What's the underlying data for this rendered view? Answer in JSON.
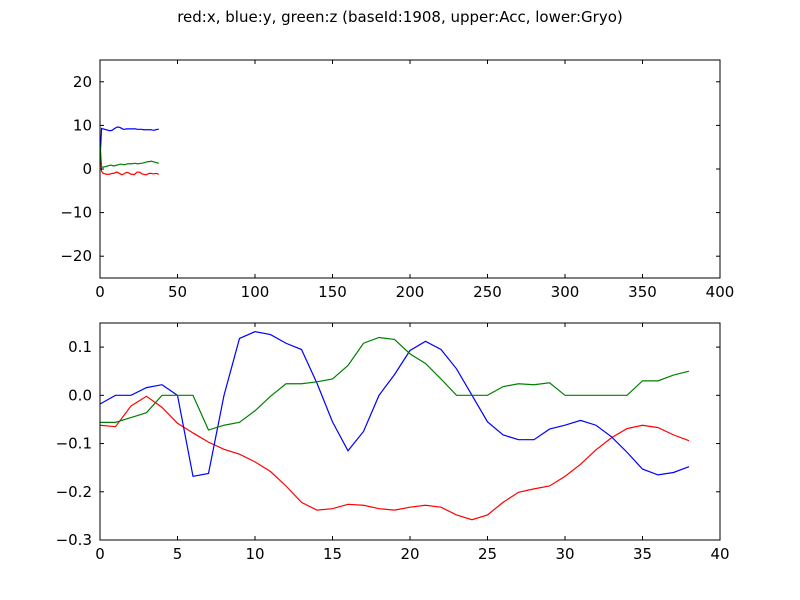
{
  "title": "red:x, blue:y, green:z (baseId:1908, upper:Acc, lower:Gryo)",
  "colors": {
    "x": "#ff0000",
    "y": "#0000ff",
    "z": "#008000"
  },
  "chart_data": [
    {
      "type": "line",
      "xlim": [
        0,
        400
      ],
      "ylim": [
        -25,
        25
      ],
      "xticks": [
        0,
        50,
        100,
        150,
        200,
        250,
        300,
        350,
        400
      ],
      "yticks": [
        20,
        10,
        0,
        -10,
        -20
      ],
      "xtick_labels": [
        "0",
        "50",
        "100",
        "150",
        "200",
        "250",
        "300",
        "350",
        "400"
      ],
      "ytick_labels": [
        "20",
        "10",
        "0",
        "−10",
        "−20"
      ],
      "x": [
        0,
        1,
        2,
        3,
        4,
        5,
        6,
        7,
        8,
        9,
        10,
        11,
        12,
        13,
        14,
        15,
        16,
        17,
        18,
        19,
        20,
        21,
        22,
        23,
        24,
        25,
        26,
        27,
        28,
        29,
        30,
        31,
        32,
        33,
        34,
        35,
        36,
        37,
        38
      ],
      "series": [
        {
          "key": "x",
          "color": "#ff0000",
          "values": [
            5.0,
            -0.5,
            -1.0,
            -1.1,
            -1.2,
            -1.2,
            -1.2,
            -1.1,
            -1.0,
            -1.0,
            -0.8,
            -0.7,
            -0.9,
            -1.1,
            -1.3,
            -1.2,
            -1.0,
            -0.8,
            -0.8,
            -1.0,
            -1.2,
            -1.2,
            -1.3,
            -1.0,
            -0.7,
            -0.7,
            -0.8,
            -1.1,
            -1.2,
            -1.3,
            -1.3,
            -1.1,
            -1.0,
            -1.0,
            -1.1,
            -1.1,
            -1.0,
            -1.1,
            -1.2
          ]
        },
        {
          "key": "y",
          "color": "#0000ff",
          "values": [
            2.0,
            9.3,
            9.2,
            9.1,
            9.0,
            8.9,
            8.8,
            8.8,
            8.9,
            9.2,
            9.4,
            9.6,
            9.6,
            9.5,
            9.3,
            9.1,
            9.1,
            9.2,
            9.2,
            9.2,
            9.2,
            9.2,
            9.2,
            9.2,
            9.1,
            9.1,
            9.1,
            9.1,
            9.0,
            9.0,
            9.0,
            9.0,
            9.0,
            9.0,
            8.9,
            8.9,
            9.0,
            9.1,
            9.1
          ]
        },
        {
          "key": "z",
          "color": "#008000",
          "values": [
            6.0,
            0.5,
            0.4,
            0.5,
            0.6,
            0.7,
            0.8,
            0.9,
            0.8,
            0.7,
            0.8,
            0.9,
            1.0,
            1.1,
            1.1,
            1.0,
            1.0,
            1.1,
            1.2,
            1.2,
            1.2,
            1.2,
            1.3,
            1.3,
            1.2,
            1.2,
            1.3,
            1.3,
            1.4,
            1.5,
            1.6,
            1.7,
            1.7,
            1.8,
            1.7,
            1.6,
            1.5,
            1.4,
            1.3
          ]
        }
      ]
    },
    {
      "type": "line",
      "xlim": [
        0,
        40
      ],
      "ylim": [
        -0.3,
        0.15
      ],
      "xticks": [
        0,
        5,
        10,
        15,
        20,
        25,
        30,
        35,
        40
      ],
      "yticks": [
        0.1,
        0.0,
        -0.1,
        -0.2,
        -0.3
      ],
      "xtick_labels": [
        "0",
        "5",
        "10",
        "15",
        "20",
        "25",
        "30",
        "35",
        "40"
      ],
      "ytick_labels": [
        "0.1",
        "0.0",
        "−0.1",
        "−0.2",
        "−0.3"
      ],
      "x": [
        0,
        1,
        2,
        3,
        4,
        5,
        6,
        7,
        8,
        9,
        10,
        11,
        12,
        13,
        14,
        15,
        16,
        17,
        18,
        19,
        20,
        21,
        22,
        23,
        24,
        25,
        26,
        27,
        28,
        29,
        30,
        31,
        32,
        33,
        34,
        35,
        36,
        37,
        38
      ],
      "series": [
        {
          "key": "x",
          "color": "#ff0000",
          "values": [
            -0.062,
            -0.065,
            -0.022,
            -0.002,
            -0.025,
            -0.058,
            -0.078,
            -0.097,
            -0.112,
            -0.122,
            -0.138,
            -0.158,
            -0.188,
            -0.222,
            -0.238,
            -0.235,
            -0.226,
            -0.228,
            -0.235,
            -0.238,
            -0.232,
            -0.228,
            -0.232,
            -0.248,
            -0.258,
            -0.248,
            -0.222,
            -0.201,
            -0.194,
            -0.188,
            -0.168,
            -0.143,
            -0.113,
            -0.088,
            -0.069,
            -0.062,
            -0.067,
            -0.082,
            -0.094
          ]
        },
        {
          "key": "y",
          "color": "#0000ff",
          "values": [
            -0.018,
            0.0,
            0.0,
            0.016,
            0.022,
            0.0,
            -0.168,
            -0.162,
            0.0,
            0.118,
            0.132,
            0.126,
            0.108,
            0.095,
            0.025,
            -0.055,
            -0.115,
            -0.075,
            0.0,
            0.043,
            0.093,
            0.112,
            0.095,
            0.055,
            0.0,
            -0.055,
            -0.082,
            -0.092,
            -0.092,
            -0.07,
            -0.062,
            -0.052,
            -0.062,
            -0.086,
            -0.118,
            -0.153,
            -0.165,
            -0.16,
            -0.148
          ]
        },
        {
          "key": "z",
          "color": "#008000",
          "values": [
            -0.056,
            -0.056,
            -0.046,
            -0.036,
            0.0,
            0.0,
            0.0,
            -0.072,
            -0.062,
            -0.056,
            -0.032,
            -0.002,
            0.024,
            0.024,
            0.028,
            0.034,
            0.062,
            0.108,
            0.12,
            0.116,
            0.086,
            0.066,
            0.034,
            0.0,
            0.0,
            0.0,
            0.018,
            0.024,
            0.022,
            0.026,
            0.0,
            0.0,
            0.0,
            0.0,
            0.0,
            0.03,
            0.03,
            0.042,
            0.05
          ]
        }
      ]
    }
  ]
}
